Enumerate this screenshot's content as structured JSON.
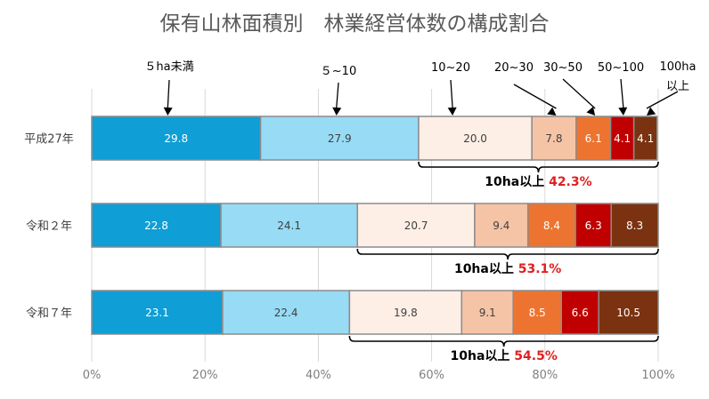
{
  "chart_data": {
    "type": "bar",
    "orientation": "horizontal",
    "stacked": "percent",
    "title": "保有山林面積別　林業経営体数の構成割合",
    "categories": [
      "平成27年",
      "令和２年",
      "令和７年"
    ],
    "series": [
      {
        "name": "５ha未満",
        "color": "#0f9ed5",
        "label_color": "#ffffff",
        "values": [
          29.8,
          22.8,
          23.1
        ]
      },
      {
        "name": "５~10",
        "color": "#97dbf5",
        "label_color": "#404040",
        "values": [
          27.9,
          24.1,
          22.4
        ]
      },
      {
        "name": "10~20",
        "color": "#fdefe6",
        "label_color": "#404040",
        "values": [
          20.0,
          20.7,
          19.8
        ]
      },
      {
        "name": "20~30",
        "color": "#f5c4a6",
        "label_color": "#404040",
        "values": [
          7.8,
          9.4,
          9.1
        ]
      },
      {
        "name": "30~50",
        "color": "#ed7430",
        "label_color": "#ffffff",
        "values": [
          6.1,
          8.4,
          8.5
        ]
      },
      {
        "name": "50~100",
        "color": "#c00000",
        "label_color": "#ffffff",
        "values": [
          4.1,
          6.3,
          6.6
        ]
      },
      {
        "name": "100ha以上",
        "color": "#7a3210",
        "label_color": "#ffffff",
        "values": [
          4.1,
          8.3,
          10.5
        ]
      }
    ],
    "data_labels": [
      [
        "29.8",
        "27.9",
        "20.0",
        "7.8",
        "6.1",
        "4.1",
        "4.1"
      ],
      [
        "22.8",
        "24.1",
        "20.7",
        "9.4",
        "8.4",
        "6.3",
        "8.3"
      ],
      [
        "23.1",
        "22.4",
        "19.8",
        "9.1",
        "8.5",
        "6.6",
        "10.5"
      ]
    ],
    "xlim": [
      0,
      100
    ],
    "x_ticks": [
      "0%",
      "20%",
      "40%",
      "60%",
      "80%",
      "100%"
    ],
    "grid": true,
    "series_headers": [
      {
        "text": "５ha未満"
      },
      {
        "text": "５~10"
      },
      {
        "text": "10~20"
      },
      {
        "text": "20~30"
      },
      {
        "text": "30~50"
      },
      {
        "text": "50~100"
      },
      {
        "text": "100ha",
        "text2": "以上"
      }
    ],
    "annotations": [
      {
        "label": "10ha以上",
        "value": "42.3%"
      },
      {
        "label": "10ha以上",
        "value": "53.1%"
      },
      {
        "label": "10ha以上",
        "value": "54.5%"
      }
    ]
  }
}
